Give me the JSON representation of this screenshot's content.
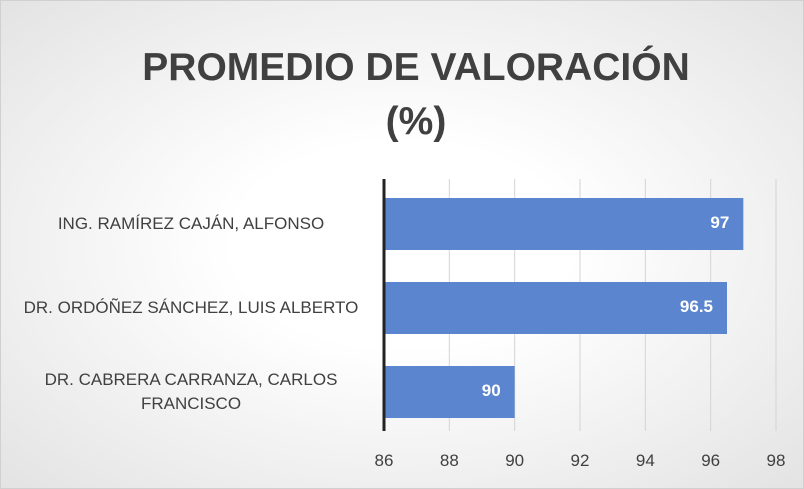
{
  "chart_data": {
    "type": "barh",
    "title": "PROMEDIO DE VALORACIÓN (%)",
    "categories": [
      "ING. RAMÍREZ CAJÁN, ALFONSO",
      "DR. ORDÓÑEZ SÁNCHEZ, LUIS ALBERTO",
      "DR. CABRERA CARRANZA, CARLOS FRANCISCO"
    ],
    "values": [
      97,
      96.5,
      90
    ],
    "color": "#5b86cf",
    "xlim": [
      86,
      98
    ],
    "xticks": [
      86,
      88,
      90,
      92,
      94,
      96,
      98
    ],
    "grid": true
  }
}
